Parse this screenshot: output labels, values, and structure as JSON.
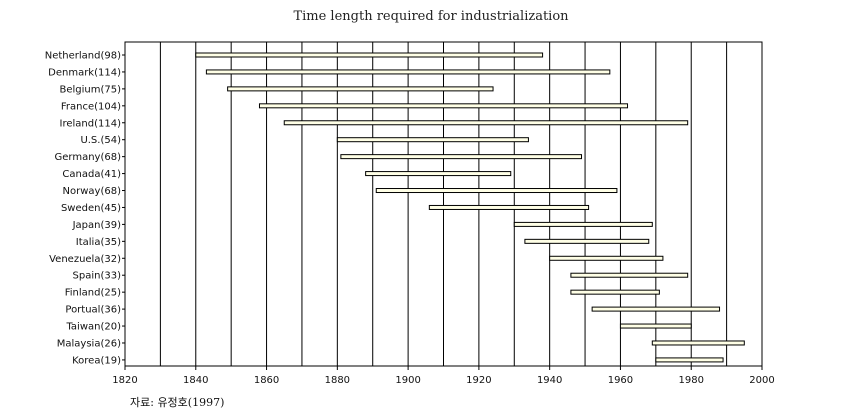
{
  "chart_data": {
    "type": "bar",
    "orientation": "horizontal-range",
    "title": "Time length required for industrialization",
    "categories": [
      "Netherland(98)",
      "Denmark(114)",
      "Belgium(75)",
      "France(104)",
      "Ireland(114)",
      "U.S.(54)",
      "Germany(68)",
      "Canada(41)",
      "Norway(68)",
      "Sweden(45)",
      "Japan(39)",
      "Italia(35)",
      "Venezuela(32)",
      "Spain(33)",
      "Finland(25)",
      "Portual(36)",
      "Taiwan(20)",
      "Malaysia(26)",
      "Korea(19)"
    ],
    "ranges": [
      [
        1840,
        1938
      ],
      [
        1843,
        1957
      ],
      [
        1849,
        1924
      ],
      [
        1858,
        1962
      ],
      [
        1865,
        1979
      ],
      [
        1880,
        1934
      ],
      [
        1881,
        1949
      ],
      [
        1888,
        1929
      ],
      [
        1891,
        1959
      ],
      [
        1906,
        1951
      ],
      [
        1930,
        1969
      ],
      [
        1933,
        1968
      ],
      [
        1940,
        1972
      ],
      [
        1946,
        1979
      ],
      [
        1946,
        1971
      ],
      [
        1952,
        1988
      ],
      [
        1960,
        1980
      ],
      [
        1969,
        1995
      ],
      [
        1970,
        1989
      ]
    ],
    "xlim": [
      1820,
      2000
    ],
    "xticks": [
      1820,
      1840,
      1860,
      1880,
      1900,
      1920,
      1940,
      1960,
      1980,
      2000
    ],
    "grid": "vertical",
    "bar_fill": "#ffffe6",
    "source": "자료: 유정호(1997)"
  }
}
